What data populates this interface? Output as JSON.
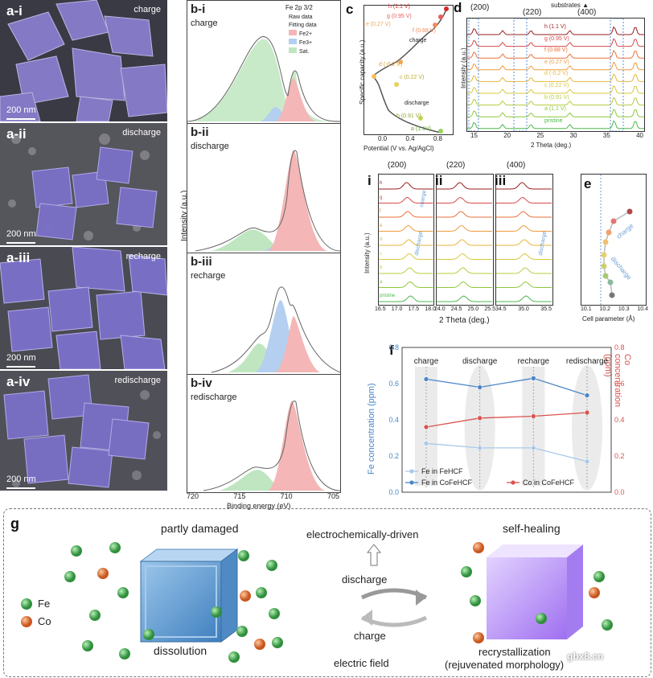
{
  "panel_a": {
    "label": "a",
    "images": [
      {
        "tag": "a-i",
        "state": "charge",
        "scale": "200 nm"
      },
      {
        "tag": "a-ii",
        "state": "discharge",
        "scale": "200 nm"
      },
      {
        "tag": "a-iii",
        "state": "recharge",
        "scale": "200 nm"
      },
      {
        "tag": "a-iv",
        "state": "redischarge",
        "scale": "200 nm"
      }
    ]
  },
  "panel_b": {
    "title": "Fe 2p 3/2",
    "legend": [
      "Raw data",
      "Fitting data",
      "Fe2+",
      "Fe3+",
      "Sat."
    ],
    "subpanels": [
      {
        "tag": "b-i",
        "state": "charge"
      },
      {
        "tag": "b-ii",
        "state": "discharge"
      },
      {
        "tag": "b-iii",
        "state": "recharge"
      },
      {
        "tag": "b-iv",
        "state": "redischarge"
      }
    ],
    "ylabel": "Intensity (a.u.)",
    "xlabel": "Binding energy (eV)",
    "xticks": [
      "720",
      "715",
      "710",
      "705"
    ]
  },
  "panel_c": {
    "label": "c",
    "ylabel": "Specific capacity (a.u.)",
    "xlabel": "Potential (V vs. Ag/AgCl)",
    "xticks": [
      "0.0",
      "0.4",
      "0.8"
    ],
    "points": [
      "h (1.1 V)",
      "g (0.95 V)",
      "f (0.88 V)",
      "e (0.27 V)",
      "d (-0.2 V)",
      "c (0.22 V)",
      "b (0.91 V)",
      "a (1.1V)"
    ],
    "notes": [
      "charge",
      "discharge"
    ]
  },
  "panel_d": {
    "label": "d",
    "peaks": [
      "(200)",
      "(220)",
      "(400)"
    ],
    "substrates": "substrates",
    "traces": [
      "h (1.1 V)",
      "g (0.95 V)",
      "f (0.88 V)",
      "e (0.27 V)",
      "d (-0.2 V)",
      "c (0.22 V)",
      "b (0.91 V)",
      "a (1.1 V)",
      "pristine"
    ],
    "ylabel": "Intensity (a.u.)",
    "xlabel": "2 Theta (deg.)",
    "xticks": [
      "15",
      "20",
      "25",
      "30",
      "35",
      "40"
    ]
  },
  "panel_zoom": {
    "panels": [
      {
        "tag": "i",
        "peak": "(200)",
        "xticks": [
          "16.5",
          "17.0",
          "17.5",
          "18.0"
        ]
      },
      {
        "tag": "ii",
        "peak": "(220)",
        "xticks": [
          "24.0",
          "24.5",
          "25.0",
          "25.5"
        ]
      },
      {
        "tag": "iii",
        "peak": "(400)",
        "xticks": [
          "34.5",
          "35.0",
          "35.5"
        ]
      }
    ],
    "ylabel": "Intensity (a.u.)",
    "xlabel": "2 Theta (deg.)",
    "trace_labels": [
      "h",
      "g",
      "f",
      "e",
      "d",
      "c",
      "b",
      "a",
      "pristine"
    ],
    "notes": [
      "charge",
      "discharge",
      "discharge"
    ]
  },
  "panel_e": {
    "label": "e",
    "xlabel": "Cell parameter (Å)",
    "xticks": [
      "10.1",
      "10.2",
      "10.3",
      "10.4"
    ],
    "notes": [
      "charge",
      "discharge"
    ]
  },
  "panel_f": {
    "label": "f",
    "chart_data": {
      "type": "line",
      "categories": [
        "charge",
        "discharge",
        "recharge",
        "redischarge"
      ],
      "series": [
        {
          "name": "Fe in FeHCF",
          "axis": "left",
          "values": [
            0.27,
            0.245,
            0.245,
            0.17
          ],
          "color": "#a9c8e8"
        },
        {
          "name": "Fe in CoFeHCF",
          "axis": "left",
          "values": [
            0.625,
            0.58,
            0.63,
            0.535
          ],
          "color": "#4a86c8"
        },
        {
          "name": "Co in CoFeHCF",
          "axis": "right",
          "values": [
            0.36,
            0.41,
            0.42,
            0.44
          ],
          "color": "#d9534f"
        }
      ],
      "ylabel": "Fe concentration (ppm)",
      "y2label": "Co concentration (ppm)",
      "ylim": [
        0,
        0.8
      ],
      "yticks": [
        "0.0",
        "0.2",
        "0.4",
        "0.6",
        "0.8"
      ]
    }
  },
  "panel_g": {
    "label": "g",
    "left_title": "partly damaged",
    "left_caption": "dissolution",
    "center_top": "electrochemically-driven",
    "center_discharge": "discharge",
    "center_charge": "charge",
    "center_bottom": "electric field",
    "right_title": "self-healing",
    "right_caption": "recrystallization",
    "right_caption2": "(rejuvenated morphology)",
    "legend_fe": "Fe",
    "legend_co": "Co",
    "watermark": "gbx8.cn",
    "colors": {
      "fe": "#3fa34d",
      "co": "#e0703a",
      "cube_left": "#6ea4d4",
      "cube_right": "#b48ef0"
    }
  }
}
